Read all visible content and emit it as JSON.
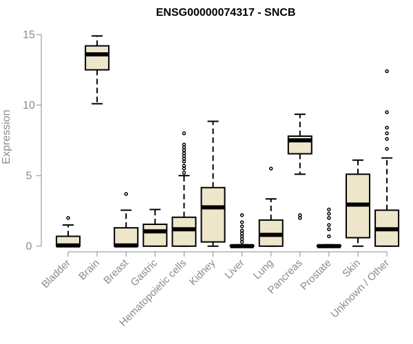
{
  "chart_data": {
    "type": "boxplot",
    "title": "ENSG00000074317 - SNCB",
    "xlabel": "",
    "ylabel": "Expression",
    "ylim": [
      -0.4,
      15.5
    ],
    "yticks": [
      0,
      5,
      10,
      15
    ],
    "ytick_labels": [
      "0",
      "5",
      "10",
      "15"
    ],
    "grid": false,
    "colors": {
      "box_fill": "#ede6cb",
      "box_stroke": "#000000",
      "axis": "#8a8a8a"
    },
    "categories": [
      "Bladder",
      "Brain",
      "Breast",
      "Gastric",
      "Hematopoietic cells",
      "Kidney",
      "Liver",
      "Lung",
      "Pancreas",
      "Prostate",
      "Skin",
      "Unknown / Other"
    ],
    "boxes": [
      {
        "name": "Bladder",
        "whisker_low": 0.0,
        "q1": 0.0,
        "median": 0.05,
        "q3": 0.7,
        "whisker_high": 1.5,
        "outliers": [
          2.0
        ]
      },
      {
        "name": "Brain",
        "whisker_low": 10.1,
        "q1": 12.5,
        "median": 13.6,
        "q3": 14.2,
        "whisker_high": 14.9,
        "outliers": []
      },
      {
        "name": "Breast",
        "whisker_low": 0.0,
        "q1": 0.0,
        "median": 0.05,
        "q3": 1.3,
        "whisker_high": 2.55,
        "outliers": [
          3.7
        ]
      },
      {
        "name": "Gastric",
        "whisker_low": 0.0,
        "q1": 0.0,
        "median": 1.05,
        "q3": 1.55,
        "whisker_high": 2.6,
        "outliers": []
      },
      {
        "name": "Hematopoietic cells",
        "whisker_low": 0.0,
        "q1": 0.0,
        "median": 1.2,
        "q3": 2.05,
        "whisker_high": 5.0,
        "outliers": [
          5.2,
          5.5,
          5.7,
          6.0,
          6.2,
          6.4,
          6.6,
          6.8,
          7.0,
          7.2,
          8.0
        ]
      },
      {
        "name": "Kidney",
        "whisker_low": 0.0,
        "q1": 0.3,
        "median": 2.75,
        "q3": 4.15,
        "whisker_high": 8.85,
        "outliers": []
      },
      {
        "name": "Liver",
        "whisker_low": 0.0,
        "q1": 0.0,
        "median": 0.0,
        "q3": 0.05,
        "whisker_high": 0.1,
        "outliers": [
          0.3,
          0.5,
          0.7,
          0.9,
          1.1,
          1.4,
          1.7,
          2.2
        ]
      },
      {
        "name": "Lung",
        "whisker_low": 0.0,
        "q1": 0.0,
        "median": 0.8,
        "q3": 1.85,
        "whisker_high": 3.35,
        "outliers": [
          5.5
        ]
      },
      {
        "name": "Pancreas",
        "whisker_low": 5.1,
        "q1": 6.55,
        "median": 7.5,
        "q3": 7.8,
        "whisker_high": 9.35,
        "outliers": [
          2.0,
          2.2
        ]
      },
      {
        "name": "Prostate",
        "whisker_low": 0.0,
        "q1": 0.0,
        "median": 0.0,
        "q3": 0.05,
        "whisker_high": 0.1,
        "outliers": [
          0.7,
          1.2,
          1.5,
          2.0,
          2.3,
          2.6
        ]
      },
      {
        "name": "Skin",
        "whisker_low": 0.0,
        "q1": 0.6,
        "median": 2.95,
        "q3": 5.1,
        "whisker_high": 6.1,
        "outliers": []
      },
      {
        "name": "Unknown / Other",
        "whisker_low": 0.0,
        "q1": 0.0,
        "median": 1.2,
        "q3": 2.55,
        "whisker_high": 6.25,
        "outliers": [
          6.9,
          7.6,
          8.0,
          8.4,
          9.5,
          12.4
        ]
      }
    ]
  }
}
